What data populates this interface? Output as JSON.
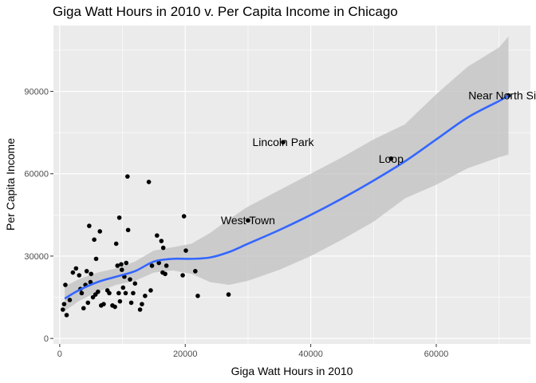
{
  "chart_data": {
    "type": "scatter",
    "title": "Giga Watt Hours in 2010 v. Per Capita Income in Chicago",
    "xlabel": "Giga Watt Hours in 2010",
    "ylabel": "Per Capita Income",
    "xlim": [
      -1000,
      75000
    ],
    "ylim": [
      -2000,
      114000
    ],
    "x_ticks": [
      0,
      20000,
      40000,
      60000
    ],
    "x_tick_labels": [
      "0",
      "20000",
      "40000",
      "60000"
    ],
    "y_ticks": [
      0,
      30000,
      60000,
      90000
    ],
    "y_tick_labels": [
      "0",
      "30000",
      "60000",
      "90000"
    ],
    "grid": true,
    "legend": "none",
    "colors": {
      "panel": "#ebebeb",
      "grid_major": "#ffffff",
      "point": "#000000",
      "smooth_line": "#3366ff",
      "ribbon": "#bebebe"
    },
    "points": [
      {
        "x": 500,
        "y": 10500
      },
      {
        "x": 700,
        "y": 12500
      },
      {
        "x": 900,
        "y": 19500
      },
      {
        "x": 1100,
        "y": 8500
      },
      {
        "x": 1600,
        "y": 14000
      },
      {
        "x": 2100,
        "y": 24000
      },
      {
        "x": 2600,
        "y": 25500
      },
      {
        "x": 3100,
        "y": 23000
      },
      {
        "x": 3300,
        "y": 18000
      },
      {
        "x": 3500,
        "y": 16500
      },
      {
        "x": 3800,
        "y": 11000
      },
      {
        "x": 4100,
        "y": 19500
      },
      {
        "x": 4300,
        "y": 24500
      },
      {
        "x": 4500,
        "y": 13000
      },
      {
        "x": 4700,
        "y": 41000
      },
      {
        "x": 4900,
        "y": 20500
      },
      {
        "x": 5000,
        "y": 23500
      },
      {
        "x": 5300,
        "y": 15000
      },
      {
        "x": 5500,
        "y": 36000
      },
      {
        "x": 5700,
        "y": 16000
      },
      {
        "x": 5800,
        "y": 29000
      },
      {
        "x": 6100,
        "y": 17000
      },
      {
        "x": 6400,
        "y": 39000
      },
      {
        "x": 6600,
        "y": 12000
      },
      {
        "x": 7000,
        "y": 12500
      },
      {
        "x": 7600,
        "y": 17500
      },
      {
        "x": 7900,
        "y": 16500
      },
      {
        "x": 8400,
        "y": 12000
      },
      {
        "x": 8800,
        "y": 11500
      },
      {
        "x": 9000,
        "y": 34500
      },
      {
        "x": 9200,
        "y": 26500
      },
      {
        "x": 9400,
        "y": 16500
      },
      {
        "x": 9500,
        "y": 44000
      },
      {
        "x": 9600,
        "y": 13500
      },
      {
        "x": 9800,
        "y": 27000
      },
      {
        "x": 9900,
        "y": 25000
      },
      {
        "x": 10100,
        "y": 18500
      },
      {
        "x": 10300,
        "y": 22500
      },
      {
        "x": 10500,
        "y": 16500
      },
      {
        "x": 10600,
        "y": 27500
      },
      {
        "x": 10900,
        "y": 39500
      },
      {
        "x": 10800,
        "y": 59000
      },
      {
        "x": 11200,
        "y": 21500
      },
      {
        "x": 11400,
        "y": 13000
      },
      {
        "x": 11700,
        "y": 16500
      },
      {
        "x": 12000,
        "y": 20000
      },
      {
        "x": 12800,
        "y": 10500
      },
      {
        "x": 13100,
        "y": 12500
      },
      {
        "x": 13600,
        "y": 15500
      },
      {
        "x": 14200,
        "y": 57000
      },
      {
        "x": 14500,
        "y": 17500
      },
      {
        "x": 14700,
        "y": 26500
      },
      {
        "x": 15500,
        "y": 37500
      },
      {
        "x": 15800,
        "y": 27500
      },
      {
        "x": 16200,
        "y": 35500
      },
      {
        "x": 16500,
        "y": 33000
      },
      {
        "x": 16400,
        "y": 24000
      },
      {
        "x": 16800,
        "y": 23500
      },
      {
        "x": 17000,
        "y": 26500
      },
      {
        "x": 19600,
        "y": 23000
      },
      {
        "x": 19800,
        "y": 44500
      },
      {
        "x": 20100,
        "y": 32000
      },
      {
        "x": 21600,
        "y": 24500
      },
      {
        "x": 22000,
        "y": 15500
      },
      {
        "x": 26900,
        "y": 16000
      },
      {
        "x": 30000,
        "y": 43000
      },
      {
        "x": 35600,
        "y": 71500
      },
      {
        "x": 52800,
        "y": 65500
      },
      {
        "x": 71500,
        "y": 88500
      }
    ],
    "annotations": [
      {
        "label": "West Town",
        "x": 30000,
        "y": 43000
      },
      {
        "label": "Lincoln Park",
        "x": 35600,
        "y": 71500
      },
      {
        "label": "Loop",
        "x": 52800,
        "y": 65500
      },
      {
        "label": "Near North Side",
        "x": 71500,
        "y": 88500
      }
    ],
    "smooth": {
      "method": "loess",
      "x": [
        800,
        3000,
        6000,
        9000,
        12000,
        15000,
        18000,
        21000,
        24000,
        27000,
        30000,
        35000,
        40000,
        45000,
        50000,
        55000,
        60000,
        65000,
        70000,
        71500
      ],
      "y": [
        14500,
        17500,
        20500,
        22500,
        24500,
        28000,
        29000,
        29000,
        29500,
        31500,
        34500,
        39500,
        45000,
        51000,
        57500,
        64500,
        72500,
        80500,
        86500,
        88500
      ],
      "lower": [
        10000,
        13500,
        17000,
        19500,
        21000,
        24000,
        24800,
        23500,
        20500,
        19500,
        21000,
        25000,
        30000,
        36000,
        42500,
        51000,
        56000,
        62000,
        66000,
        67000
      ],
      "upper": [
        19000,
        21500,
        24000,
        25500,
        28000,
        32000,
        33200,
        34500,
        38500,
        43500,
        48000,
        54000,
        60000,
        66000,
        72500,
        78000,
        89000,
        99000,
        106000,
        110000
      ]
    }
  }
}
